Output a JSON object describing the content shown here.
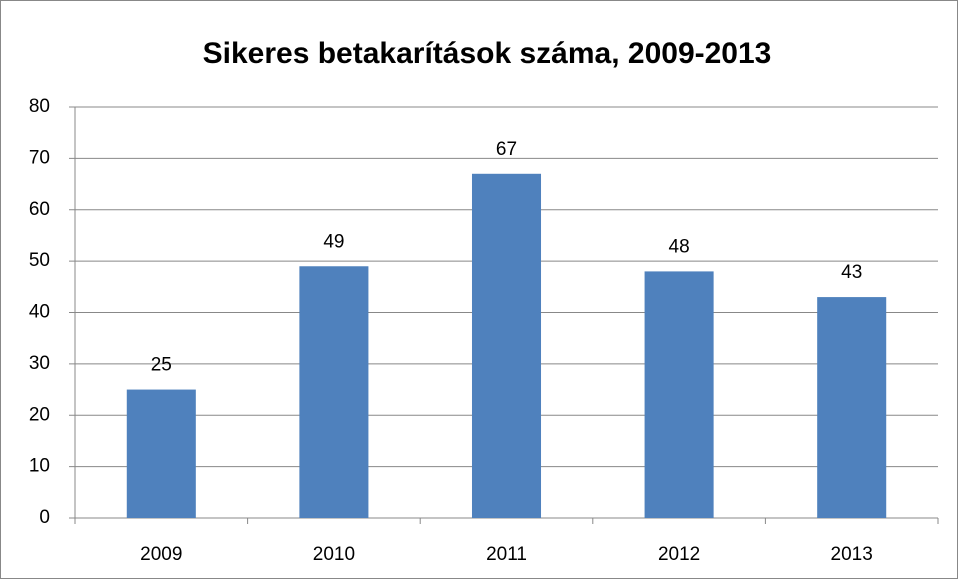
{
  "chart_data": {
    "type": "bar",
    "title": "Sikeres betakarítások száma, 2009-2013",
    "categories": [
      "2009",
      "2010",
      "2011",
      "2012",
      "2013"
    ],
    "values": [
      25,
      49,
      67,
      48,
      43
    ],
    "color": "#4f81bd",
    "ylim": [
      0,
      80
    ],
    "yticks": [
      0,
      10,
      20,
      30,
      40,
      50,
      60,
      70,
      80
    ],
    "grid": true,
    "data_labels": true
  }
}
